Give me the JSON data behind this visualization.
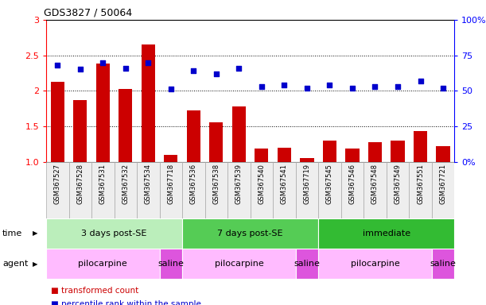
{
  "title": "GDS3827 / 50064",
  "samples": [
    "GSM367527",
    "GSM367528",
    "GSM367531",
    "GSM367532",
    "GSM367534",
    "GSM367718",
    "GSM367536",
    "GSM367538",
    "GSM367539",
    "GSM367540",
    "GSM367541",
    "GSM367719",
    "GSM367545",
    "GSM367546",
    "GSM367548",
    "GSM367549",
    "GSM367551",
    "GSM367721"
  ],
  "bar_values": [
    2.13,
    1.87,
    2.38,
    2.02,
    2.65,
    1.1,
    1.72,
    1.55,
    1.78,
    1.18,
    1.2,
    1.05,
    1.3,
    1.18,
    1.27,
    1.3,
    1.43,
    1.22
  ],
  "dot_values": [
    68,
    65,
    70,
    66,
    70,
    51,
    64,
    62,
    66,
    53,
    54,
    52,
    54,
    52,
    53,
    53,
    57,
    52
  ],
  "bar_color": "#cc0000",
  "dot_color": "#0000cc",
  "ylim_left": [
    1,
    3
  ],
  "ylim_right": [
    0,
    100
  ],
  "yticks_left": [
    1.0,
    1.5,
    2.0,
    2.5,
    3.0
  ],
  "yticks_right": [
    0,
    25,
    50,
    75,
    100
  ],
  "ytick_labels_right": [
    "0%",
    "25",
    "50",
    "75",
    "100%"
  ],
  "hlines": [
    1.5,
    2.0,
    2.5
  ],
  "time_groups": [
    {
      "label": "3 days post-SE",
      "start": 0,
      "end": 5,
      "color": "#bbeebb"
    },
    {
      "label": "7 days post-SE",
      "start": 6,
      "end": 11,
      "color": "#55cc55"
    },
    {
      "label": "immediate",
      "start": 12,
      "end": 17,
      "color": "#33bb33"
    }
  ],
  "agent_groups": [
    {
      "label": "pilocarpine",
      "start": 0,
      "end": 4,
      "color": "#ffbbff"
    },
    {
      "label": "saline",
      "start": 5,
      "end": 5,
      "color": "#dd55dd"
    },
    {
      "label": "pilocarpine",
      "start": 6,
      "end": 10,
      "color": "#ffbbff"
    },
    {
      "label": "saline",
      "start": 11,
      "end": 11,
      "color": "#dd55dd"
    },
    {
      "label": "pilocarpine",
      "start": 12,
      "end": 16,
      "color": "#ffbbff"
    },
    {
      "label": "saline",
      "start": 17,
      "end": 17,
      "color": "#dd55dd"
    }
  ],
  "legend_items": [
    {
      "label": "transformed count",
      "color": "#cc0000"
    },
    {
      "label": "percentile rank within the sample",
      "color": "#0000cc"
    }
  ],
  "time_label": "time",
  "agent_label": "agent",
  "background_color": "#ffffff"
}
